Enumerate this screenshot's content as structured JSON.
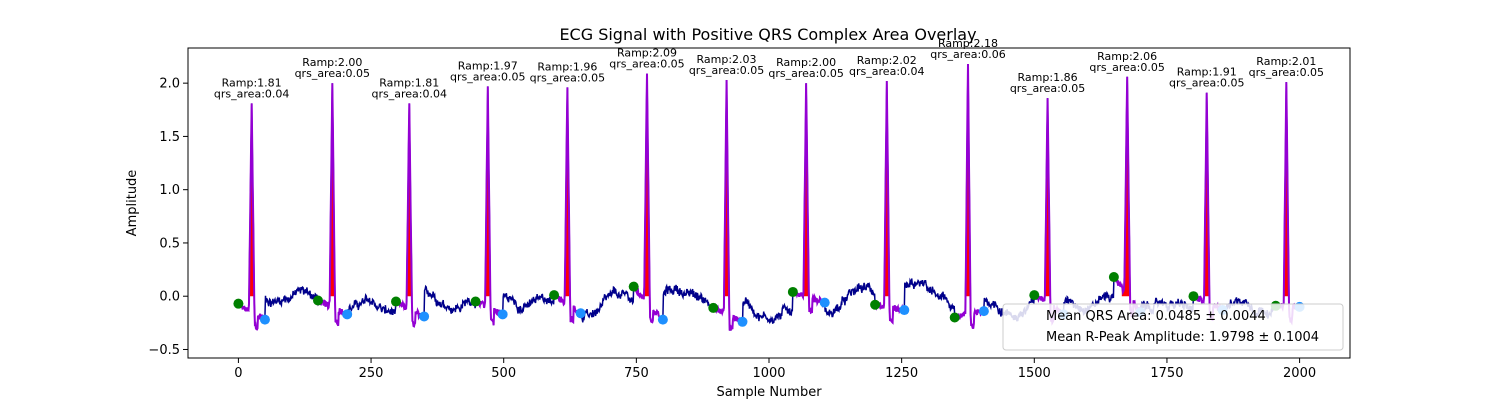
{
  "chart_data": {
    "type": "line",
    "title": "ECG Signal with Positive QRS Complex Area Overlay",
    "xlabel": "Sample Number",
    "ylabel": "Amplitude",
    "xlim": [
      -95,
      2095
    ],
    "ylim": [
      -0.58,
      2.33
    ],
    "xticks": [
      0,
      250,
      500,
      750,
      1000,
      1250,
      1500,
      1750,
      2000
    ],
    "yticks": [
      -0.5,
      0.0,
      0.5,
      1.0,
      1.5,
      2.0
    ],
    "ytick_labels": [
      "−0.5",
      "0.0",
      "0.5",
      "1.0",
      "1.5",
      "2.0"
    ],
    "grid": false,
    "legend_position": "lower-right",
    "colors": {
      "signal": "#00008b",
      "qrs_segment": "#9400d3",
      "qrs_fill": "#ff0000",
      "qrs_onset": "#008000",
      "qrs_offset": "#1e90ff"
    },
    "beats": [
      {
        "r_sample": 25,
        "r_amp": 1.81,
        "qrs_area": 0.04,
        "onset": 0,
        "onset_amp": -0.07,
        "offset": 50,
        "offset_amp": -0.22,
        "label_ramp": "Ramp:1.81",
        "label_area": "qrs_area:0.04"
      },
      {
        "r_sample": 177,
        "r_amp": 2.0,
        "qrs_area": 0.05,
        "onset": 150,
        "onset_amp": -0.04,
        "offset": 205,
        "offset_amp": -0.17,
        "label_ramp": "Ramp:2.00",
        "label_area": "qrs_area:0.05"
      },
      {
        "r_sample": 322,
        "r_amp": 1.81,
        "qrs_area": 0.04,
        "onset": 297,
        "onset_amp": -0.05,
        "offset": 350,
        "offset_amp": -0.19,
        "label_ramp": "Ramp:1.81",
        "label_area": "qrs_area:0.04"
      },
      {
        "r_sample": 470,
        "r_amp": 1.97,
        "qrs_area": 0.05,
        "onset": 447,
        "onset_amp": -0.05,
        "offset": 498,
        "offset_amp": -0.17,
        "label_ramp": "Ramp:1.97",
        "label_area": "qrs_area:0.05"
      },
      {
        "r_sample": 620,
        "r_amp": 1.96,
        "qrs_area": 0.05,
        "onset": 595,
        "onset_amp": 0.01,
        "offset": 645,
        "offset_amp": -0.16,
        "label_ramp": "Ramp:1.96",
        "label_area": "qrs_area:0.05"
      },
      {
        "r_sample": 770,
        "r_amp": 2.09,
        "qrs_area": 0.05,
        "onset": 745,
        "onset_amp": 0.09,
        "offset": 800,
        "offset_amp": -0.22,
        "label_ramp": "Ramp:2.09",
        "label_area": "qrs_area:0.05"
      },
      {
        "r_sample": 920,
        "r_amp": 2.03,
        "qrs_area": 0.05,
        "onset": 895,
        "onset_amp": -0.11,
        "offset": 950,
        "offset_amp": -0.24,
        "label_ramp": "Ramp:2.03",
        "label_area": "qrs_area:0.05"
      },
      {
        "r_sample": 1070,
        "r_amp": 2.0,
        "qrs_area": 0.05,
        "onset": 1045,
        "onset_amp": 0.04,
        "offset": 1105,
        "offset_amp": -0.06,
        "label_ramp": "Ramp:2.00",
        "label_area": "qrs_area:0.05"
      },
      {
        "r_sample": 1222,
        "r_amp": 2.02,
        "qrs_area": 0.04,
        "onset": 1200,
        "onset_amp": -0.08,
        "offset": 1255,
        "offset_amp": -0.13,
        "label_ramp": "Ramp:2.02",
        "label_area": "qrs_area:0.04"
      },
      {
        "r_sample": 1375,
        "r_amp": 2.18,
        "qrs_area": 0.06,
        "onset": 1350,
        "onset_amp": -0.2,
        "offset": 1405,
        "offset_amp": -0.14,
        "label_ramp": "Ramp:2.18",
        "label_area": "qrs_area:0.06"
      },
      {
        "r_sample": 1525,
        "r_amp": 1.86,
        "qrs_area": 0.05,
        "onset": 1500,
        "onset_amp": 0.01,
        "offset": 1555,
        "offset_amp": -0.17,
        "label_ramp": "Ramp:1.86",
        "label_area": "qrs_area:0.05"
      },
      {
        "r_sample": 1675,
        "r_amp": 2.06,
        "qrs_area": 0.05,
        "onset": 1650,
        "onset_amp": 0.18,
        "offset": 1700,
        "offset_amp": -0.15,
        "label_ramp": "Ramp:2.06",
        "label_area": "qrs_area:0.05"
      },
      {
        "r_sample": 1825,
        "r_amp": 1.91,
        "qrs_area": 0.05,
        "onset": 1800,
        "onset_amp": 0.0,
        "offset": 1855,
        "offset_amp": -0.13,
        "label_ramp": "Ramp:1.91",
        "label_area": "qrs_area:0.05"
      },
      {
        "r_sample": 1975,
        "r_amp": 2.01,
        "qrs_area": 0.05,
        "onset": 1955,
        "onset_amp": -0.09,
        "offset": 2000,
        "offset_amp": -0.1,
        "label_ramp": "Ramp:2.01",
        "label_area": "qrs_area:0.05"
      }
    ],
    "legend": [
      {
        "text": "Mean QRS Area: 0.0485 ± 0.0044"
      },
      {
        "text": "Mean R-Peak Amplitude: 1.9798 ± 0.1004"
      }
    ]
  }
}
